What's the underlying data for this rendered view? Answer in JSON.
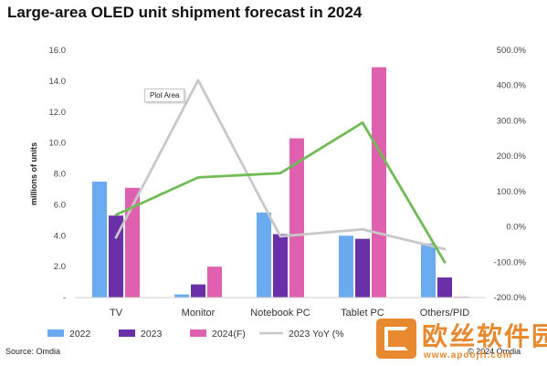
{
  "chart_data": {
    "type": "bar",
    "title": "Large-area OLED unit shipment forecast in 2024",
    "ylabel": "millions of units",
    "y2label": "",
    "categories": [
      "TV",
      "Monitor",
      "Notebook PC",
      "Tablet PC",
      "Others/PID"
    ],
    "ylim": [
      0,
      16
    ],
    "y2lim": [
      -200,
      500
    ],
    "yticks": [
      "-",
      "2.0",
      "4.0",
      "6.0",
      "8.0",
      "10.0",
      "12.0",
      "14.0",
      "16.0"
    ],
    "y2ticks": [
      "-200.0%",
      "-100.0%",
      "0.0%",
      "100.0%",
      "200.0%",
      "300.0%",
      "400.0%",
      "500.0%"
    ],
    "series": [
      {
        "name": "2022",
        "values": [
          7.5,
          0.2,
          5.5,
          4.0,
          3.5
        ],
        "color": "#6aaaf0",
        "kind": "bar",
        "axis": "left"
      },
      {
        "name": "2023",
        "values": [
          5.3,
          0.85,
          4.1,
          3.8,
          1.3
        ],
        "color": "#6a30a8",
        "kind": "bar",
        "axis": "left"
      },
      {
        "name": "2024(F)",
        "values": [
          7.1,
          2.0,
          10.3,
          14.9,
          0.05
        ],
        "color": "#e060b0",
        "kind": "bar",
        "axis": "left"
      },
      {
        "name": "2023 YoY (%)",
        "values": [
          -30,
          415,
          -27,
          -7,
          -63
        ],
        "color": "#c8c8c8",
        "kind": "line",
        "axis": "right"
      },
      {
        "name": "",
        "values": [
          34,
          140,
          152,
          295,
          -100
        ],
        "color": "#70bb55",
        "kind": "line",
        "axis": "right"
      }
    ],
    "legend": [
      "2022",
      "2023",
      "2024(F)",
      "2023 YoY (%"
    ],
    "legend_position": "bottom",
    "grid": false
  },
  "tooltip": "Plot Area",
  "source": "Source: Omdia",
  "copyright": "© 2024 Omdia",
  "watermark": {
    "text": "欧丝软件园",
    "url": "www.apoojfl.com",
    "color": "#e8892f"
  }
}
